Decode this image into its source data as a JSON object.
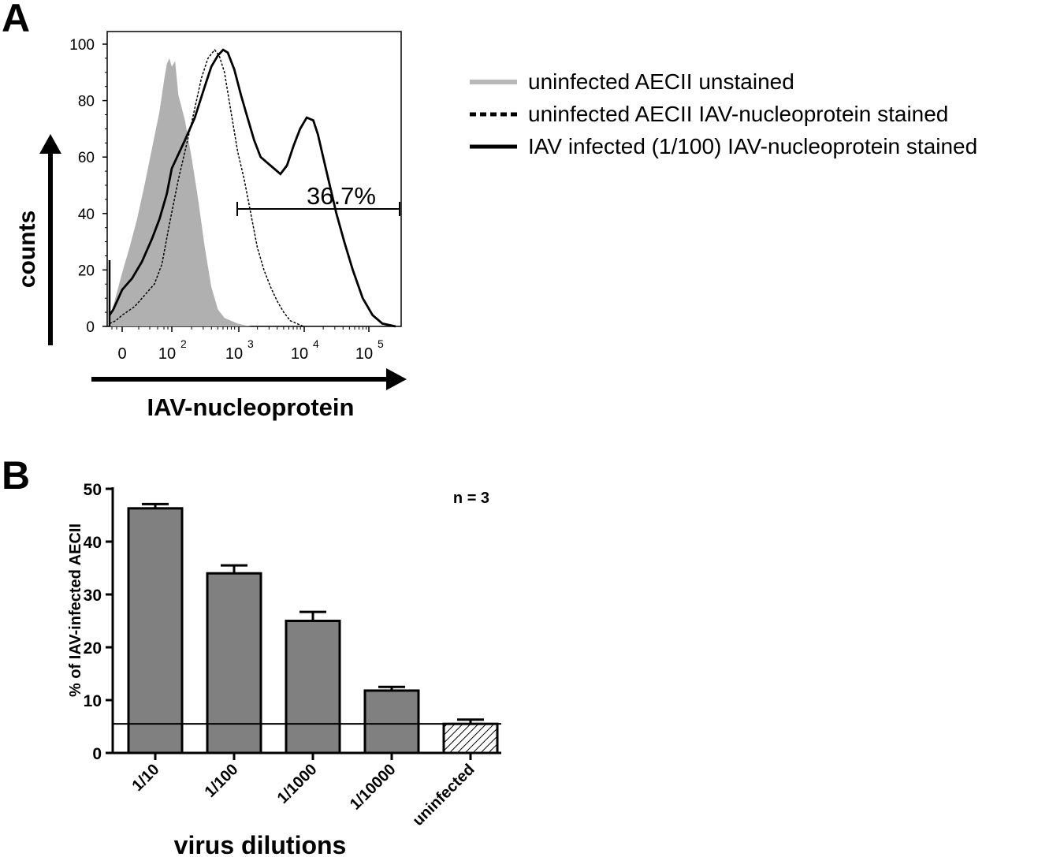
{
  "panel_a": {
    "letter": "A",
    "chart_data": {
      "type": "area",
      "title": "",
      "xlabel": "IAV-nucleoprotein",
      "ylabel": "counts",
      "ylim": [
        0,
        100
      ],
      "yticks": [
        "0",
        "20",
        "40",
        "60",
        "80",
        "100"
      ],
      "xticks": [
        {
          "base": "0",
          "exp": ""
        },
        {
          "base": "10",
          "exp": "2"
        },
        {
          "base": "10",
          "exp": "3"
        },
        {
          "base": "10",
          "exp": "4"
        },
        {
          "base": "10",
          "exp": "5"
        }
      ],
      "gate_label": "36.7%",
      "legend": [
        "uninfected AECII unstained",
        "uninfected AECII IAV-nucleoprotein stained",
        "IAV infected (1/100) IAV-nucleoprotein stained"
      ],
      "series": [
        {
          "name": "uninfected AECII unstained",
          "style": "gray-fill",
          "color": "#b0b0b0",
          "points": [
            [
              -1,
              2
            ],
            [
              -0.8,
              6
            ],
            [
              -0.6,
              9
            ],
            [
              -0.3,
              14
            ],
            [
              0,
              19
            ],
            [
              0.3,
              28
            ],
            [
              0.6,
              38
            ],
            [
              0.9,
              50
            ],
            [
              1.2,
              63
            ],
            [
              1.5,
              76
            ],
            [
              1.7,
              88
            ],
            [
              1.8,
              93
            ],
            [
              1.9,
              95
            ],
            [
              2.0,
              92
            ],
            [
              2.05,
              94
            ],
            [
              2.1,
              82
            ],
            [
              2.2,
              73
            ],
            [
              2.3,
              60
            ],
            [
              2.4,
              45
            ],
            [
              2.5,
              28
            ],
            [
              2.6,
              14
            ],
            [
              2.7,
              6
            ],
            [
              2.8,
              3
            ],
            [
              3.0,
              1
            ],
            [
              3.2,
              0
            ]
          ]
        },
        {
          "name": "uninfected AECII IAV-nucleoprotein stained",
          "style": "dashed",
          "color": "#000000",
          "points": [
            [
              -1,
              1
            ],
            [
              -0.5,
              2
            ],
            [
              0,
              4
            ],
            [
              0.5,
              7
            ],
            [
              1.0,
              12
            ],
            [
              1.3,
              15
            ],
            [
              1.6,
              22
            ],
            [
              1.9,
              36
            ],
            [
              2.1,
              52
            ],
            [
              2.3,
              72
            ],
            [
              2.45,
              88
            ],
            [
              2.55,
              95
            ],
            [
              2.65,
              98
            ],
            [
              2.72,
              96
            ],
            [
              2.8,
              90
            ],
            [
              2.9,
              76
            ],
            [
              3.0,
              62
            ],
            [
              3.1,
              52
            ],
            [
              3.2,
              40
            ],
            [
              3.3,
              28
            ],
            [
              3.4,
              20
            ],
            [
              3.5,
              14
            ],
            [
              3.6,
              9
            ],
            [
              3.7,
              5
            ],
            [
              3.8,
              2
            ],
            [
              4.0,
              0
            ]
          ]
        },
        {
          "name": "IAV infected (1/100) IAV-nucleoprotein stained",
          "style": "solid",
          "color": "#000000",
          "points": [
            [
              -1,
              4
            ],
            [
              -0.7,
              6
            ],
            [
              -0.4,
              9
            ],
            [
              0,
              13
            ],
            [
              0.4,
              17
            ],
            [
              0.8,
              23
            ],
            [
              1.2,
              31
            ],
            [
              1.5,
              38
            ],
            [
              1.8,
              47
            ],
            [
              2.0,
              56
            ],
            [
              2.2,
              66
            ],
            [
              2.35,
              74
            ],
            [
              2.5,
              85
            ],
            [
              2.6,
              92
            ],
            [
              2.7,
              96
            ],
            [
              2.78,
              98
            ],
            [
              2.85,
              97
            ],
            [
              2.95,
              91
            ],
            [
              3.05,
              82
            ],
            [
              3.15,
              74
            ],
            [
              3.25,
              66
            ],
            [
              3.35,
              60
            ],
            [
              3.45,
              58
            ],
            [
              3.55,
              56
            ],
            [
              3.65,
              54
            ],
            [
              3.75,
              57
            ],
            [
              3.85,
              64
            ],
            [
              3.95,
              70
            ],
            [
              4.05,
              74
            ],
            [
              4.15,
              73
            ],
            [
              4.22,
              68
            ],
            [
              4.3,
              60
            ],
            [
              4.4,
              50
            ],
            [
              4.5,
              40
            ],
            [
              4.62,
              30
            ],
            [
              4.75,
              20
            ],
            [
              4.9,
              10
            ],
            [
              5.05,
              4
            ],
            [
              5.2,
              1
            ],
            [
              5.4,
              0
            ]
          ]
        }
      ]
    }
  },
  "panel_b": {
    "letter": "B",
    "chart_data": {
      "type": "bar",
      "title": "",
      "xlabel": "virus dilutions",
      "ylabel": "% of IAV-infected AECII",
      "ylim": [
        0,
        50
      ],
      "yticks": [
        "0",
        "10",
        "20",
        "30",
        "40",
        "50"
      ],
      "categories": [
        "1/10",
        "1/100",
        "1/1000",
        "1/10000",
        "uninfected"
      ],
      "values": [
        46.3,
        34.0,
        25.0,
        11.8,
        5.5
      ],
      "errors": [
        0.8,
        1.5,
        1.7,
        0.7,
        0.8
      ],
      "baseline": 5.5,
      "annotation": "n = 3",
      "bar_color": "#808080"
    }
  }
}
